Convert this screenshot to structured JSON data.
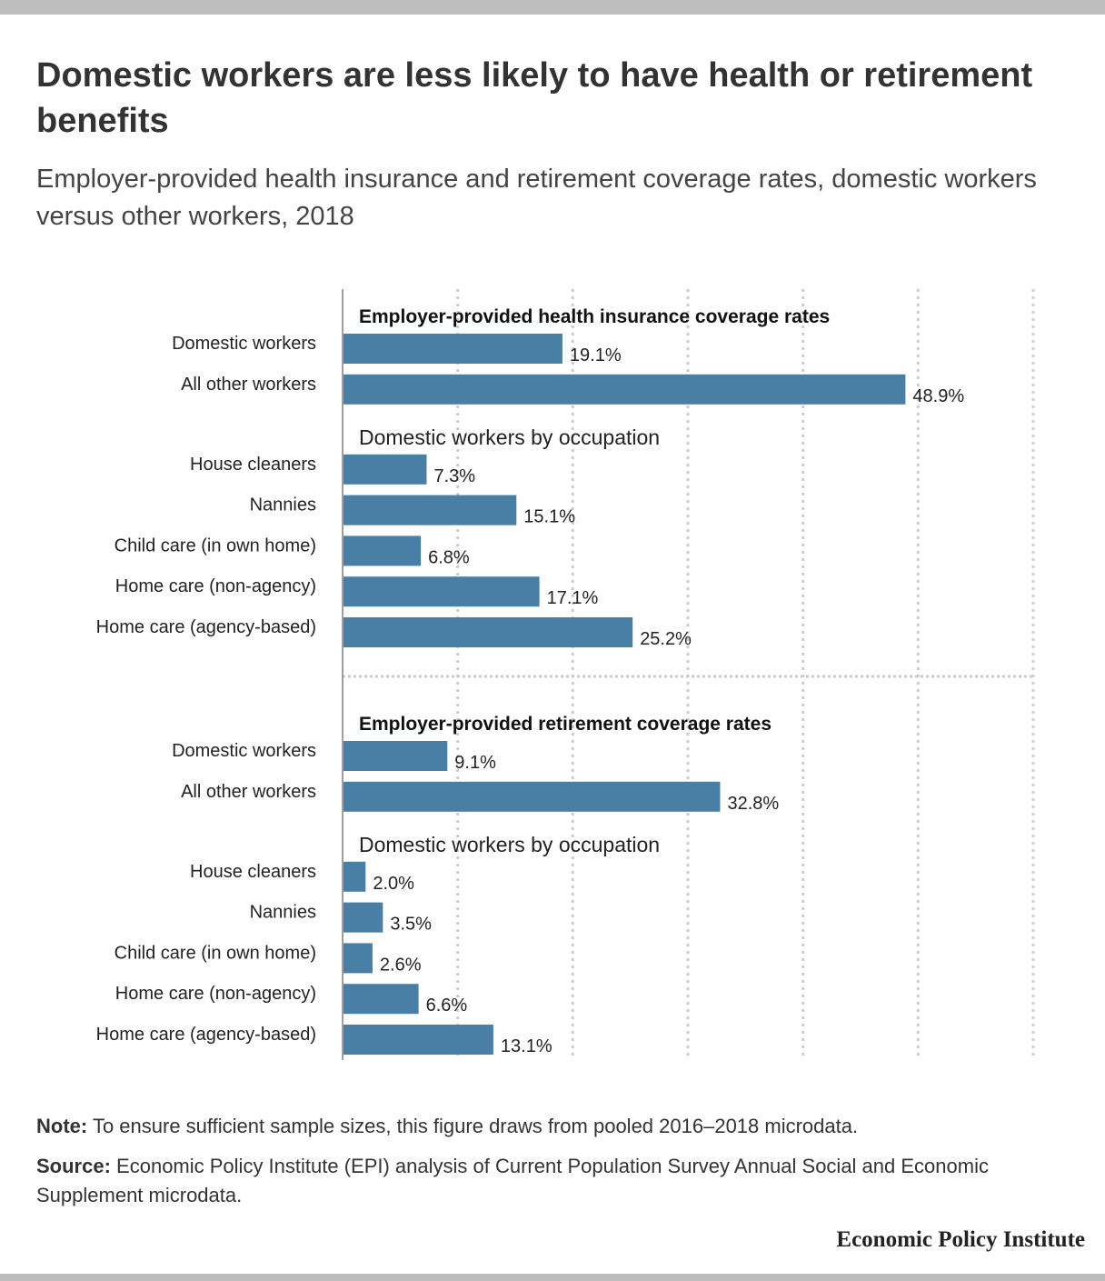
{
  "title": "Domestic workers are less likely to have health or retirement benefits",
  "subtitle": "Employer-provided health insurance and retirement coverage rates, domestic workers versus other workers, 2018",
  "chart_data": {
    "type": "bar",
    "orientation": "horizontal",
    "xlim": [
      0,
      60
    ],
    "grid": true,
    "value_suffix": "%",
    "colors": {
      "bar": "#4a7fa5",
      "grid": "#cccccc",
      "axis": "#9e9e9e"
    },
    "sections": [
      {
        "title": "Employer-provided health insurance coverage rates",
        "groups": [
          {
            "title": "",
            "categories": [
              "Domestic workers",
              "All other workers"
            ],
            "values": [
              19.1,
              48.9
            ],
            "labels": [
              "19.1%",
              "48.9%"
            ]
          },
          {
            "title": "Domestic workers by occupation",
            "categories": [
              "House cleaners",
              "Nannies",
              "Child care (in own home)",
              "Home care (non-agency)",
              "Home care (agency-based)"
            ],
            "values": [
              7.3,
              15.1,
              6.8,
              17.1,
              25.2
            ],
            "labels": [
              "7.3%",
              "15.1%",
              "6.8%",
              "17.1%",
              "25.2%"
            ]
          }
        ]
      },
      {
        "title": "Employer-provided retirement coverage rates",
        "groups": [
          {
            "title": "",
            "categories": [
              "Domestic workers",
              "All other workers"
            ],
            "values": [
              9.1,
              32.8
            ],
            "labels": [
              "9.1%",
              "32.8%"
            ]
          },
          {
            "title": "Domestic workers by occupation",
            "categories": [
              "House cleaners",
              "Nannies",
              "Child care (in own home)",
              "Home care (non-agency)",
              "Home care (agency-based)"
            ],
            "values": [
              2.0,
              3.5,
              2.6,
              6.6,
              13.1
            ],
            "labels": [
              "2.0%",
              "3.5%",
              "2.6%",
              "6.6%",
              "13.1%"
            ]
          }
        ]
      }
    ]
  },
  "footer": {
    "note_label": "Note:",
    "note_text": "To ensure sufficient sample sizes, this figure draws from pooled 2016–2018 microdata.",
    "source_label": "Source:",
    "source_text": "Economic Policy Institute (EPI) analysis of Current Population Survey Annual Social and Economic Supplement microdata."
  },
  "brand": "Economic Policy Institute"
}
